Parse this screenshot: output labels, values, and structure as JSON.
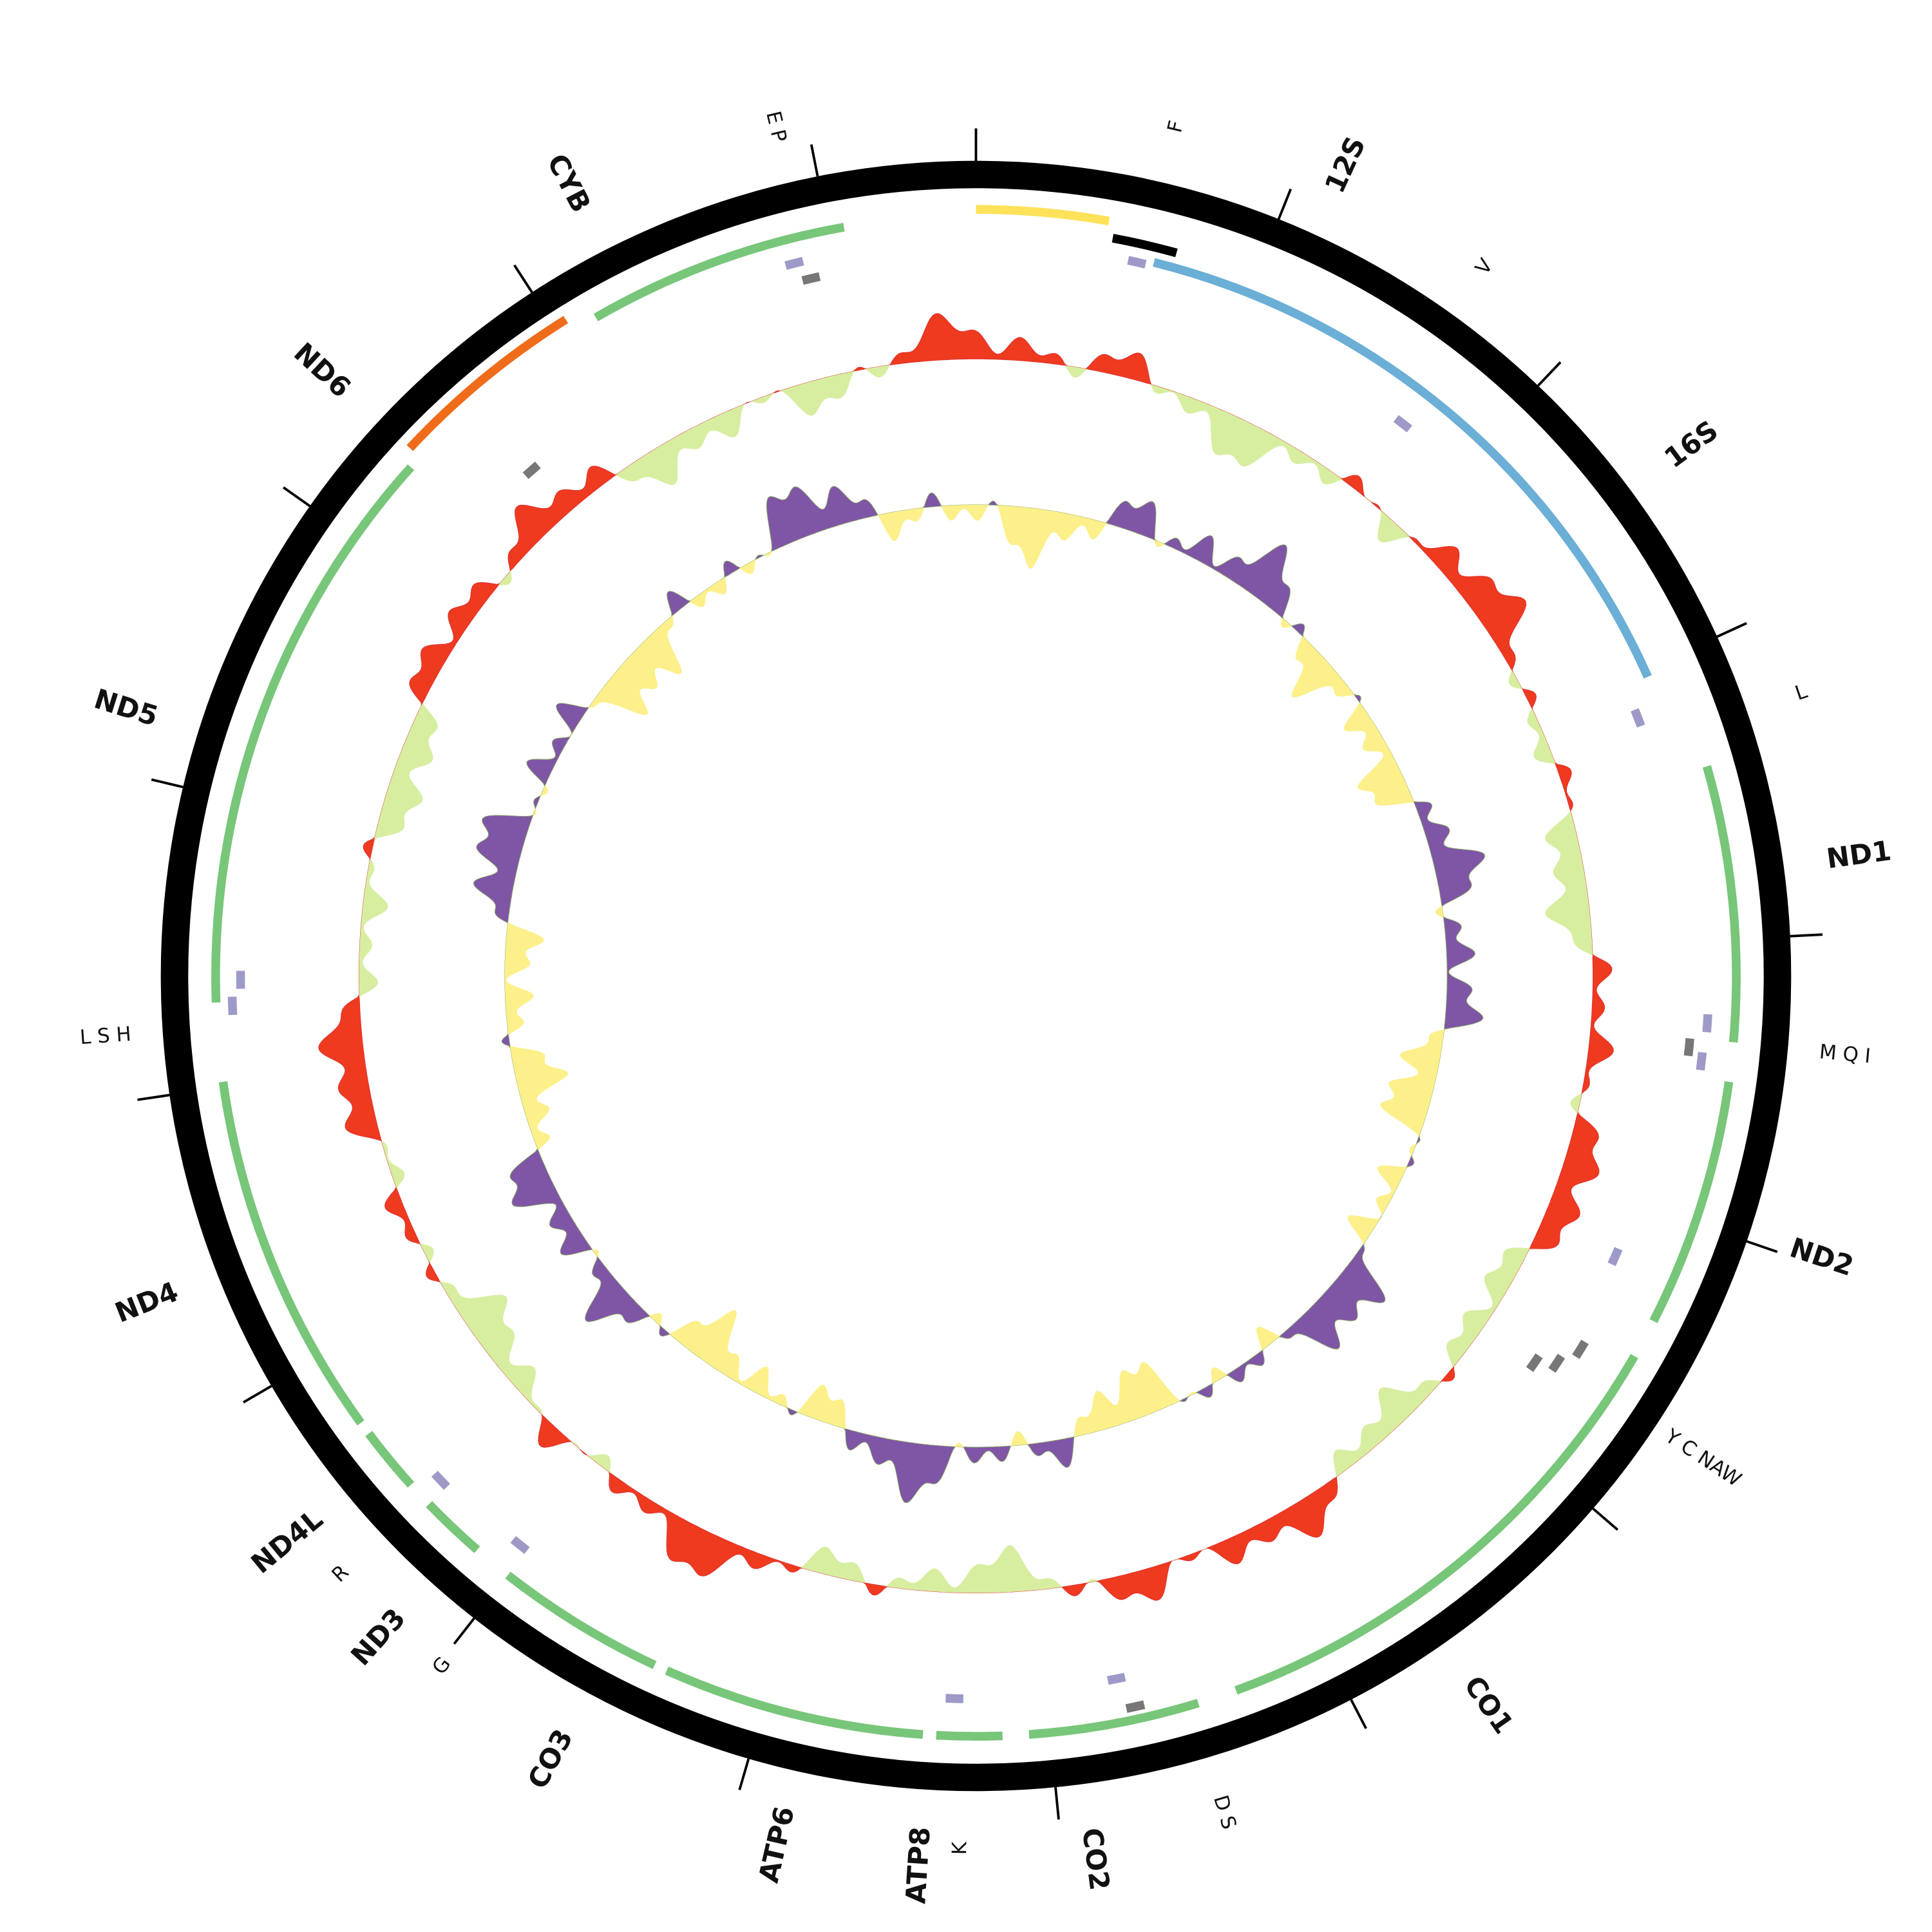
{
  "labels": [
    "E P",
    "F",
    "12S",
    "V",
    "16S",
    "L",
    "ND1",
    "M Q I",
    "ND2",
    "Y C NAW",
    "CO1",
    "D S",
    "CO2",
    "K",
    "ATP8",
    "ATP6",
    "CO3",
    "G",
    "ND3",
    "R",
    "ND4L",
    "ND4",
    "L S H",
    "ND5",
    "ND6",
    "CYB"
  ]
}
